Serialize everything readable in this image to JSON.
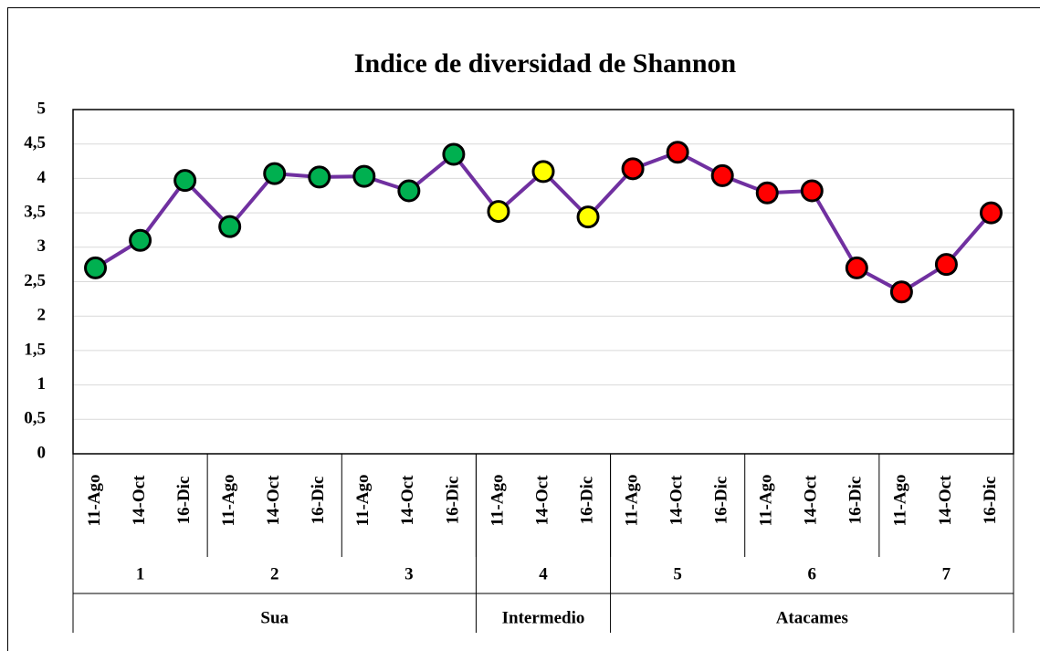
{
  "chart_data": {
    "type": "line",
    "title": "Indice de diversidad de Shannon",
    "categories": [
      "11-Ago",
      "14-Oct",
      "16-Dic",
      "11-Ago",
      "14-Oct",
      "16-Dic",
      "11-Ago",
      "14-Oct",
      "16-Dic",
      "11-Ago",
      "14-Oct",
      "16-Dic",
      "11-Ago",
      "14-Oct",
      "16-Dic",
      "11-Ago",
      "14-Oct",
      "16-Dic",
      "11-Ago",
      "14-Oct",
      "16-Dic"
    ],
    "category_groups": [
      [
        {
          "label": "1",
          "span": 3
        },
        {
          "label": "2",
          "span": 3
        },
        {
          "label": "3",
          "span": 3
        },
        {
          "label": "4",
          "span": 3
        },
        {
          "label": "5",
          "span": 3
        },
        {
          "label": "6",
          "span": 3
        },
        {
          "label": "7",
          "span": 3
        }
      ],
      [
        {
          "label": "Sua",
          "span": 9
        },
        {
          "label": "Intermedio",
          "span": 3
        },
        {
          "label": "Atacames",
          "span": 9
        }
      ]
    ],
    "values": [
      2.7,
      3.1,
      3.97,
      3.3,
      4.07,
      4.02,
      4.03,
      3.82,
      4.35,
      3.52,
      4.1,
      3.44,
      4.14,
      4.38,
      4.04,
      3.79,
      3.82,
      2.7,
      2.35,
      2.75,
      3.5
    ],
    "color": "#7030a0",
    "marker_colors": [
      "#00b050",
      "#00b050",
      "#00b050",
      "#00b050",
      "#00b050",
      "#00b050",
      "#00b050",
      "#00b050",
      "#00b050",
      "#ffff00",
      "#ffff00",
      "#ffff00",
      "#ff0000",
      "#ff0000",
      "#ff0000",
      "#ff0000",
      "#ff0000",
      "#ff0000",
      "#ff0000",
      "#ff0000",
      "#ff0000"
    ],
    "ylim": [
      0,
      5
    ],
    "yticks": [
      0,
      {
        "value": 0.5,
        "label": "0,5"
      },
      1,
      {
        "value": 1.5,
        "label": "1,5"
      },
      2,
      {
        "value": 2.5,
        "label": "2,5"
      },
      3,
      {
        "value": 3.5,
        "label": "3,5"
      },
      4,
      {
        "value": 4.5,
        "label": "4,5"
      },
      5
    ],
    "grid": true
  }
}
